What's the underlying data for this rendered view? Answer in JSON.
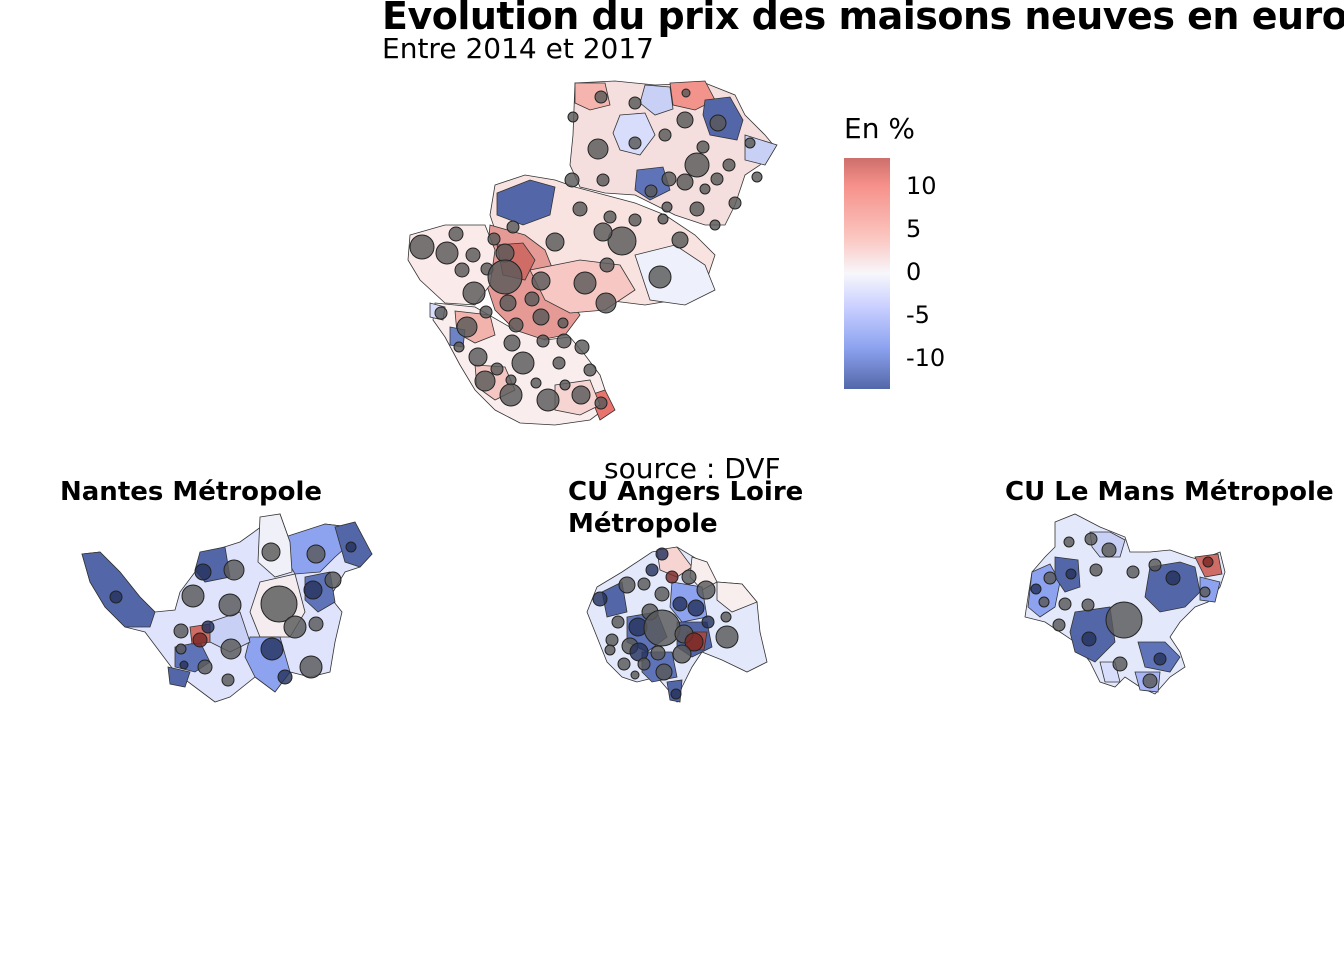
{
  "title": "Evolution du prix des maisons neuves en euros",
  "subtitle": "Entre 2014 et 2017",
  "source": "source : DVF",
  "legend": {
    "title": "En %",
    "ticks": [
      "10",
      "5",
      "0",
      "-5",
      "-10"
    ]
  },
  "insets": [
    {
      "title": "Nantes Métropole"
    },
    {
      "title_line1": "CU Angers Loire",
      "title_line2": "Métropole"
    },
    {
      "title": "CU Le Mans Métropole"
    }
  ],
  "colors": {
    "high": "#e8746d",
    "mid": "#f7f7fb",
    "low": "#5367a8",
    "circle": "#595959"
  }
}
